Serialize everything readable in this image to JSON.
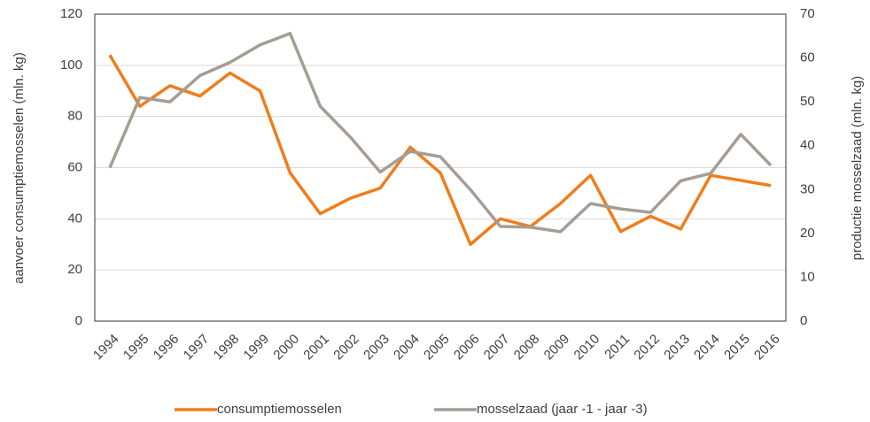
{
  "chart_data": {
    "type": "line",
    "y_label": "aanvoer consumptiemosselen (mln. kg)",
    "y2_label": "productie mosselzaad (mln. kg)",
    "categories": [
      "1994",
      "1995",
      "1996",
      "1997",
      "1998",
      "1999",
      "2000",
      "2001",
      "2002",
      "2003",
      "2004",
      "2005",
      "2006",
      "2007",
      "2008",
      "2009",
      "2010",
      "2011",
      "2012",
      "2013",
      "2014",
      "2015",
      "2016"
    ],
    "series": [
      {
        "name": "consumptiemosselen",
        "color": "#f07d1a",
        "values": [
          104,
          84,
          92,
          88,
          97,
          90,
          58,
          42,
          48,
          52,
          68,
          58,
          30,
          40,
          37,
          46,
          57,
          35,
          41,
          36,
          57,
          55,
          53
        ]
      },
      {
        "name": "mosselzaad (jaar -1 - jaar -3)",
        "color": "#a59d95",
        "axis": "y2",
        "values": [
          35,
          51,
          50,
          56,
          59,
          63,
          65.6,
          49,
          42,
          34,
          38.7,
          37.5,
          30,
          21.6,
          21.4,
          20.4,
          26.8,
          25.6,
          24.8,
          32,
          33.7,
          42.6,
          35.5
        ]
      }
    ],
    "ylim": [
      0,
      120
    ],
    "yticks": [
      0,
      20,
      40,
      60,
      80,
      100,
      120
    ],
    "y2lim": [
      0,
      70
    ],
    "y2ticks": [
      0,
      10,
      20,
      30,
      40,
      50,
      60,
      70
    ],
    "grid": true,
    "legend": "bottom"
  }
}
